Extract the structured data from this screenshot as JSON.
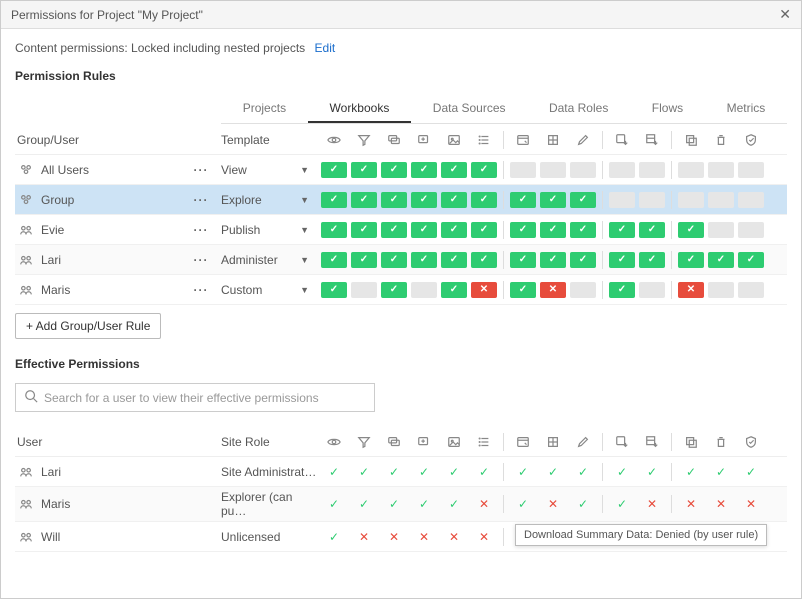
{
  "dialog_title": "Permissions for Project \"My Project\"",
  "subheader_text": "Content permissions: Locked including nested projects",
  "edit_link": "Edit",
  "section_rules": "Permission Rules",
  "section_effective": "Effective Permissions",
  "col_groupuser": "Group/User",
  "col_template": "Template",
  "col_user": "User",
  "col_siterole": "Site Role",
  "add_rule_btn": "+ Add Group/User Rule",
  "search_placeholder": "Search for a user to view their effective permissions",
  "tabs": [
    {
      "label": "Projects",
      "active": false
    },
    {
      "label": "Workbooks",
      "active": true
    },
    {
      "label": "Data Sources",
      "active": false
    },
    {
      "label": "Data Roles",
      "active": false
    },
    {
      "label": "Flows",
      "active": false
    },
    {
      "label": "Metrics",
      "active": false
    }
  ],
  "capability_icons": [
    "eye",
    "filter",
    "comments",
    "add-comment",
    "image",
    "list",
    "sep",
    "web-edit",
    "share",
    "pencil",
    "sep",
    "download-image",
    "download-data",
    "sep",
    "overwrite",
    "delete",
    "permissions"
  ],
  "rules": [
    {
      "type": "group",
      "name": "All Users",
      "template": "View",
      "caps": [
        "a",
        "a",
        "a",
        "a",
        "a",
        "a",
        null,
        "u",
        "u",
        "u",
        null,
        "u",
        "u",
        null,
        "u",
        "u",
        "u"
      ],
      "alt": false,
      "selected": false
    },
    {
      "type": "group",
      "name": "Group",
      "template": "Explore",
      "caps": [
        "a",
        "a",
        "a",
        "a",
        "a",
        "a",
        null,
        "a",
        "a",
        "a",
        null,
        "u",
        "u",
        null,
        "u",
        "u",
        "u"
      ],
      "alt": true,
      "selected": true
    },
    {
      "type": "user",
      "name": "Evie",
      "template": "Publish",
      "caps": [
        "a",
        "a",
        "a",
        "a",
        "a",
        "a",
        null,
        "a",
        "a",
        "a",
        null,
        "a",
        "a",
        null,
        "a",
        "u",
        "u"
      ],
      "alt": false,
      "selected": false
    },
    {
      "type": "user",
      "name": "Lari",
      "template": "Administer",
      "caps": [
        "a",
        "a",
        "a",
        "a",
        "a",
        "a",
        null,
        "a",
        "a",
        "a",
        null,
        "a",
        "a",
        null,
        "a",
        "a",
        "a"
      ],
      "alt": true,
      "selected": false
    },
    {
      "type": "user",
      "name": "Maris",
      "template": "Custom",
      "caps": [
        "a",
        "u",
        "a",
        "u",
        "a",
        "d",
        null,
        "a",
        "d",
        "u",
        null,
        "a",
        "u",
        null,
        "d",
        "u",
        "u"
      ],
      "alt": false,
      "selected": false
    }
  ],
  "effective": [
    {
      "name": "Lari",
      "role": "Site Administrat…",
      "caps": [
        "a",
        "a",
        "a",
        "a",
        "a",
        "a",
        null,
        "a",
        "a",
        "a",
        null,
        "a",
        "a",
        null,
        "a",
        "a",
        "a"
      ],
      "alt": false
    },
    {
      "name": "Maris",
      "role": "Explorer (can pu…",
      "caps": [
        "a",
        "a",
        "a",
        "a",
        "a",
        "d",
        null,
        "a",
        "d",
        "a",
        null,
        "a",
        "d",
        null,
        "d",
        "d",
        "d"
      ],
      "alt": true
    },
    {
      "name": "Will",
      "role": "Unlicensed",
      "caps": [
        "a",
        "d",
        "d",
        "d",
        "d",
        "d",
        null,
        "d",
        "d",
        "d",
        null,
        "d",
        "d",
        null,
        "d",
        "d",
        "d"
      ],
      "alt": false
    }
  ],
  "tooltip_text": "Download Summary Data: Denied (by user rule)",
  "colors": {
    "allow": "#2ecc71",
    "deny": "#e74c3c",
    "unset": "#e6e6e6",
    "link": "#1a6dcc",
    "selected_row": "#cde3f5"
  }
}
